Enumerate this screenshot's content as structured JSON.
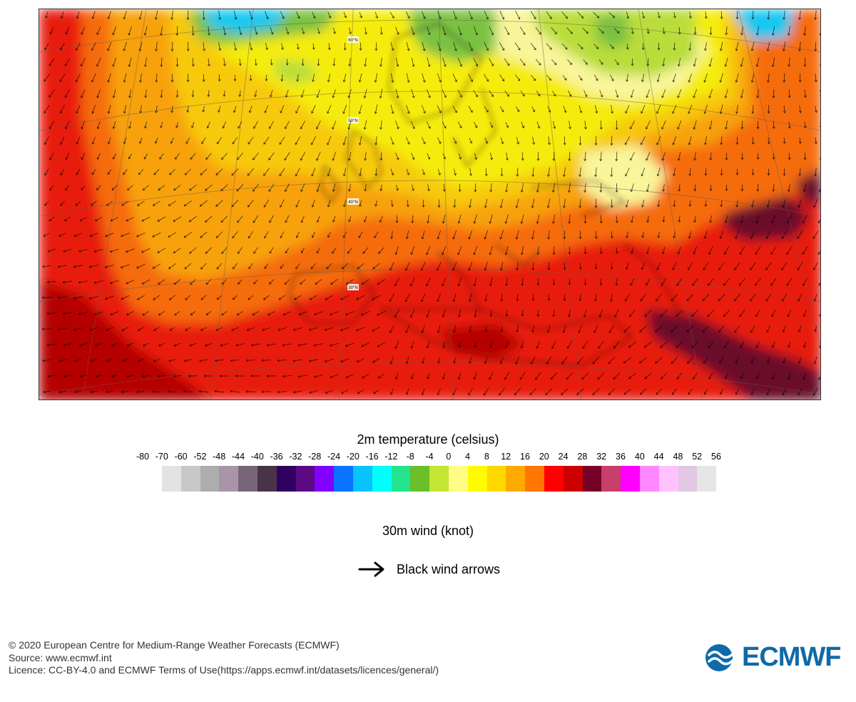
{
  "map": {
    "graticule_labels": [
      "60°N",
      "50°N",
      "40°N",
      "30°N"
    ],
    "colors": {
      "deep_red": "#b50000",
      "red": "#e81a0a",
      "orange": "#f56c0a",
      "amber": "#f7a20a",
      "gold": "#f7c90a",
      "yellow": "#f5ec10",
      "pale_yellow": "#f9f59a",
      "light_green": "#b9dd3b",
      "green": "#7ac143",
      "cyan": "#19c8f0",
      "dark_maroon": "#6b0a2a",
      "arrow_color": "#000000"
    }
  },
  "temperature_legend": {
    "title": "2m temperature (celsius)",
    "ticks": [
      "-80",
      "-70",
      "-60",
      "-52",
      "-48",
      "-44",
      "-40",
      "-36",
      "-32",
      "-28",
      "-24",
      "-20",
      "-16",
      "-12",
      "-8",
      "-4",
      "0",
      "4",
      "8",
      "12",
      "16",
      "20",
      "24",
      "28",
      "32",
      "36",
      "40",
      "44",
      "48",
      "52",
      "56"
    ],
    "colors": [
      "#e3e3e3",
      "#c8c8c8",
      "#adadad",
      "#a994a9",
      "#776677",
      "#483348",
      "#2f005f",
      "#5c0a84",
      "#8300ff",
      "#0a74ff",
      "#09c3ff",
      "#02ffff",
      "#23e38e",
      "#6abf2b",
      "#c3e534",
      "#fffd86",
      "#fffb00",
      "#ffd800",
      "#ffaa00",
      "#ff7700",
      "#ff0000",
      "#cc0000",
      "#770026",
      "#c83e6c",
      "#ff00ff",
      "#ff88ff",
      "#ffc2ff",
      "#e2c8e2",
      "#e6e6e6"
    ]
  },
  "wind_legend": {
    "title": "30m wind (knot)",
    "arrow_label": "Black wind arrows",
    "arrow_icon": "arrow-right-icon"
  },
  "footer": {
    "copyright": "© 2020 European Centre for Medium-Range Weather Forecasts (ECMWF)",
    "source": "Source: www.ecmwf.int",
    "licence": "Licence: CC-BY-4.0 and ECMWF Terms of Use(https://apps.ecmwf.int/datasets/licences/general/)"
  },
  "logo": {
    "text": "ECMWF",
    "color": "#0e6aa8",
    "icon": "ecmwf-logo-icon"
  }
}
